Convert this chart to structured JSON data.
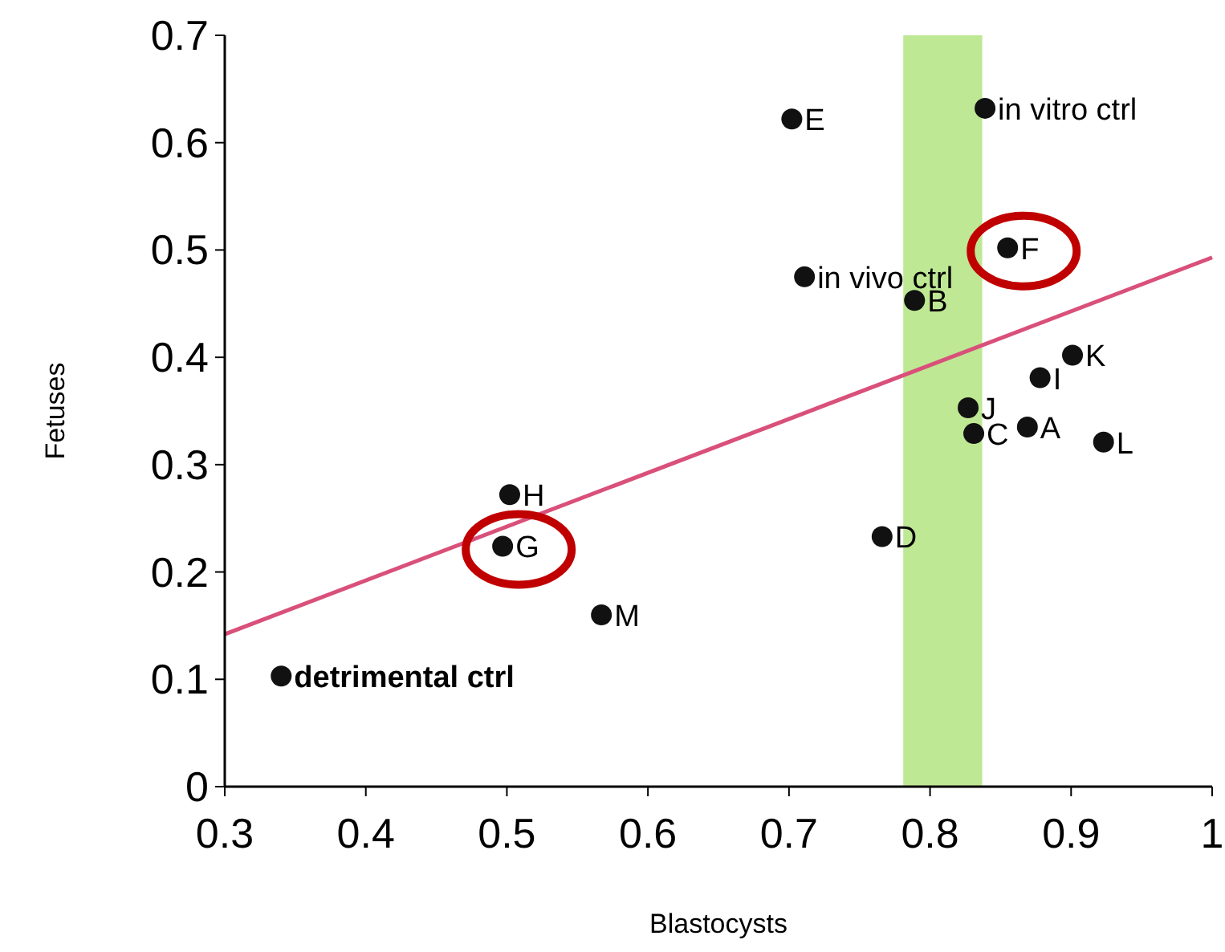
{
  "chart_data": {
    "type": "scatter",
    "xlabel": "Blastocysts",
    "ylabel": "Fetuses",
    "xlim": [
      0.3,
      1
    ],
    "ylim": [
      0,
      0.7
    ],
    "xticks": [
      0.3,
      0.4,
      0.5,
      0.6,
      0.7,
      0.8,
      0.9,
      {
        "value": 1,
        "label": "1"
      }
    ],
    "yticks": [
      {
        "value": 0,
        "label": "0"
      },
      0.1,
      0.2,
      0.3,
      0.4,
      0.5,
      0.6,
      0.7
    ],
    "grid": false,
    "series": [
      {
        "marker": "circle",
        "color": "#111111",
        "x": [
          0.34,
          0.502,
          0.497,
          0.567,
          0.702,
          0.711,
          0.789,
          0.766,
          0.827,
          0.831,
          0.855,
          0.839,
          0.878,
          0.869,
          0.901,
          0.923
        ],
        "values": [
          0.103,
          0.272,
          0.224,
          0.16,
          0.622,
          0.475,
          0.453,
          0.233,
          0.353,
          0.329,
          0.502,
          0.632,
          0.381,
          0.335,
          0.402,
          0.321
        ]
      },
      {
        "type": "line",
        "marker": "none",
        "color": "#d9507a",
        "x": [
          0.3,
          1
        ],
        "values": [
          0.142,
          0.493
        ]
      }
    ],
    "bands": [
      {
        "axis": "x",
        "from": 0.781,
        "to": 0.837,
        "color": "#a8e070"
      }
    ],
    "annotations": [
      {
        "text": "detrimental ctrl",
        "x": 0.34,
        "y": 0.103
      },
      {
        "text": "H",
        "x": 0.502,
        "y": 0.272
      },
      {
        "text": "G",
        "x": 0.497,
        "y": 0.224
      },
      {
        "text": "M",
        "x": 0.567,
        "y": 0.16
      },
      {
        "text": "E",
        "x": 0.702,
        "y": 0.622
      },
      {
        "text": "in vivo ctrl",
        "x": 0.711,
        "y": 0.475
      },
      {
        "text": "B",
        "x": 0.789,
        "y": 0.453
      },
      {
        "text": "D",
        "x": 0.766,
        "y": 0.233
      },
      {
        "text": "J",
        "x": 0.827,
        "y": 0.353
      },
      {
        "text": "C",
        "x": 0.831,
        "y": 0.329
      },
      {
        "text": "F",
        "x": 0.855,
        "y": 0.502
      },
      {
        "text": "in vitro ctrl",
        "x": 0.839,
        "y": 0.632
      },
      {
        "text": "I",
        "x": 0.878,
        "y": 0.381
      },
      {
        "text": "A",
        "x": 0.869,
        "y": 0.335
      },
      {
        "text": "K",
        "x": 0.901,
        "y": 0.402
      },
      {
        "text": "L",
        "x": 0.923,
        "y": 0.321
      }
    ]
  }
}
